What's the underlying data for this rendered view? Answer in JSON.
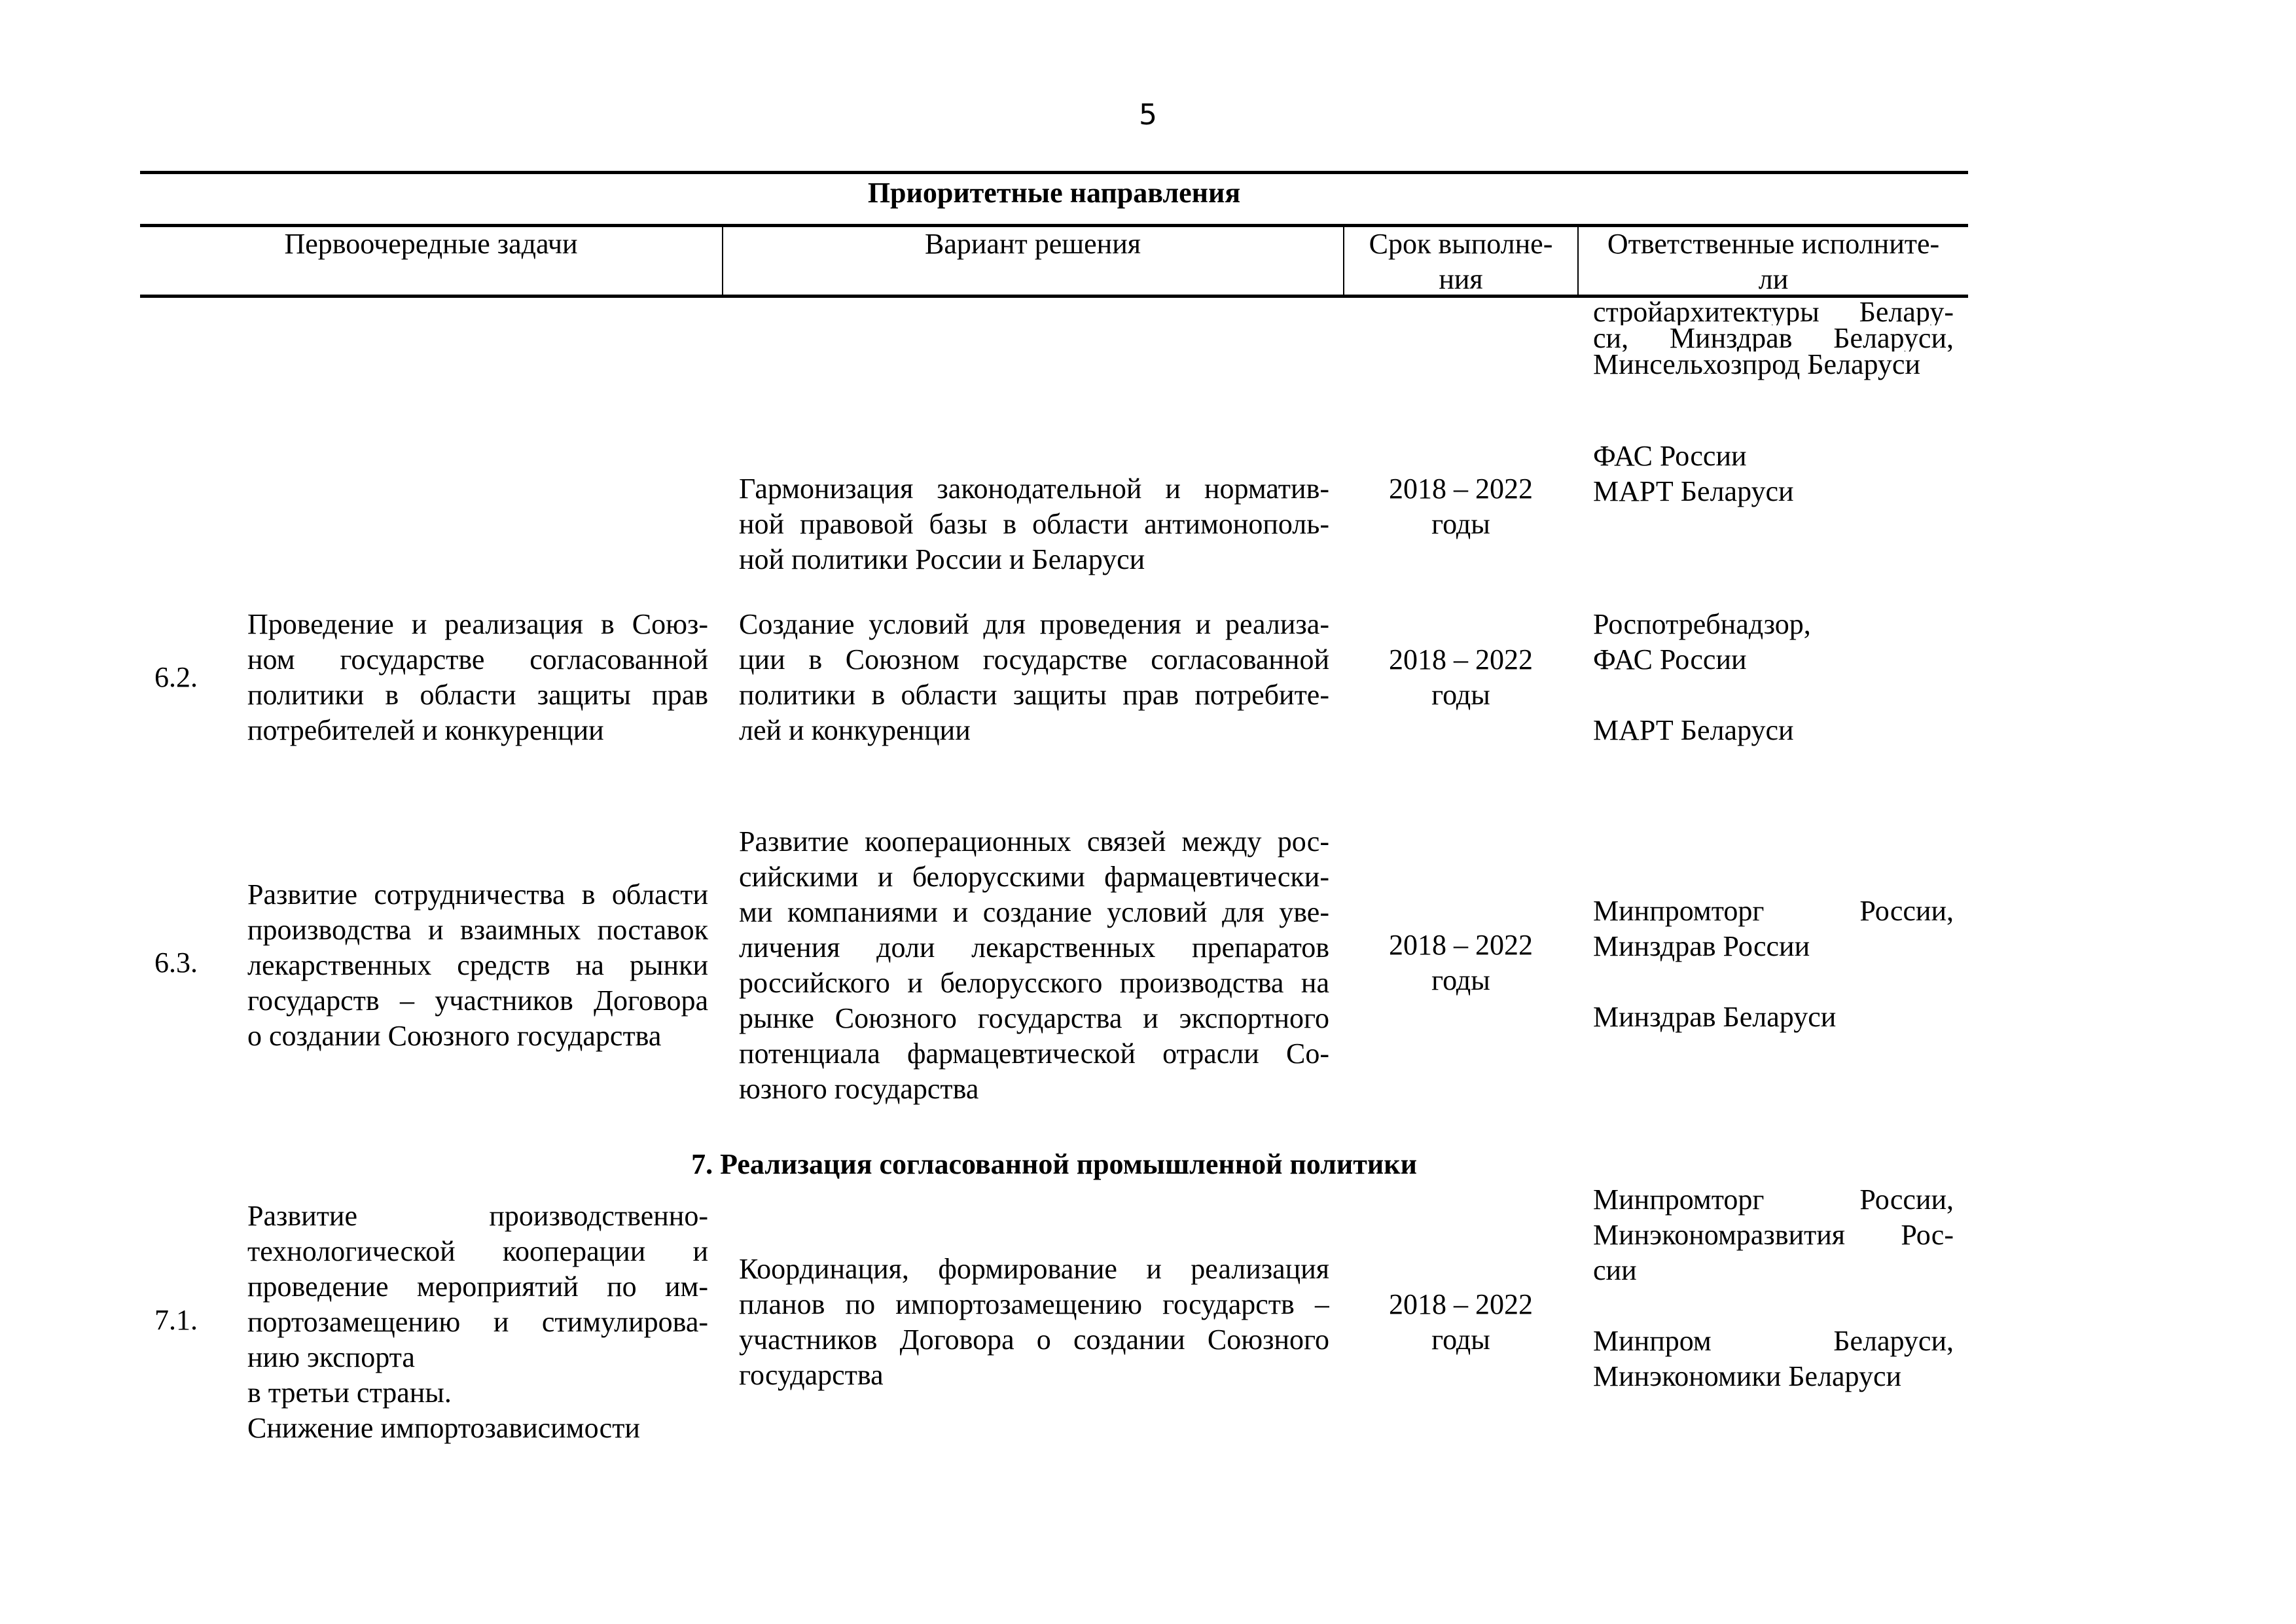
{
  "page_number": "5",
  "table": {
    "title": "Приоритетные направления",
    "headers": [
      "Первоочередные задачи",
      "Вариант решения",
      [
        "Срок выполне-",
        "ния"
      ],
      [
        "Ответственные исполните-",
        "ли"
      ]
    ]
  },
  "rows": {
    "cont": {
      "executors": [
        [
          "стройархитектуры Белару-",
          "си, Минздрав Беларуси,",
          "Минсельхозпрод Беларуси"
        ]
      ]
    },
    "harm": {
      "solution": [
        [
          "Гармонизация законодательной и норматив-",
          "ной правовой базы в области антимонополь-",
          "ной политики России и Беларуси"
        ]
      ],
      "term": [
        [
          "2018 – 2022",
          "годы"
        ]
      ],
      "executors": [
        [
          "ФАС России"
        ],
        [
          "МАРТ Беларуси"
        ]
      ]
    },
    "r62": {
      "number": "6.2.",
      "task": [
        [
          "Проведение и реализация в Союз-",
          "ном государстве согласованной",
          "политики в области защиты прав",
          "потребителей и конкуренции"
        ]
      ],
      "solution": [
        [
          "Создание условий для проведения и реализа-",
          "ции в Союзном государстве согласованной",
          "политики в области защиты прав потребите-",
          "лей и конкуренции"
        ]
      ],
      "term": [
        [
          "2018 – 2022",
          "годы"
        ]
      ],
      "executors": [
        [
          "Роспотребнадзор,",
          "ФАС России"
        ],
        [
          ""
        ],
        [
          "МАРТ Беларуси"
        ]
      ]
    },
    "r63": {
      "number": "6.3.",
      "task": [
        [
          "Развитие сотрудничества в области",
          "производства и взаимных поставок",
          "лекарственных средств на рынки",
          "государств – участников Договора",
          "о создании Союзного государства"
        ]
      ],
      "solution": [
        [
          "Развитие кооперационных связей между рос-",
          "сийскими и белорусскими фармацевтически-",
          "ми компаниями и создание условий для уве-",
          "личения доли лекарственных препаратов",
          "российского и белорусского производства на",
          "рынке Союзного государства и экспортного",
          "потенциала фармацевтической отрасли Со-",
          "юзного государства"
        ]
      ],
      "term": [
        [
          "2018 – 2022",
          "годы"
        ]
      ],
      "executors": [
        [
          "Минпромторг России,",
          "Минздрав России"
        ],
        [
          ""
        ],
        [
          "Минздрав Беларуси"
        ]
      ]
    },
    "section7": "7. Реализация согласованной промышленной политики",
    "r71": {
      "number": "7.1.",
      "task": [
        [
          "Развитие производственно-",
          "технологической кооперации и",
          "проведение мероприятий по им-",
          "портозамещению и стимулирова-",
          "нию экспорта"
        ],
        [
          "в третьи страны."
        ],
        [
          "Снижение импортозависимости"
        ]
      ],
      "solution": [
        [
          "Координация, формирование и реализация",
          "планов по импортозамещению государств –",
          "участников Договора о создании Союзного",
          "государства"
        ]
      ],
      "term": [
        [
          "2018 – 2022",
          "годы"
        ]
      ],
      "executors": [
        [
          "Минпромторг России,",
          "Минэкономразвития Рос-",
          "сии"
        ],
        [
          ""
        ],
        [
          "Минпром Беларуси,",
          "Минэкономики Беларуси"
        ]
      ]
    }
  }
}
